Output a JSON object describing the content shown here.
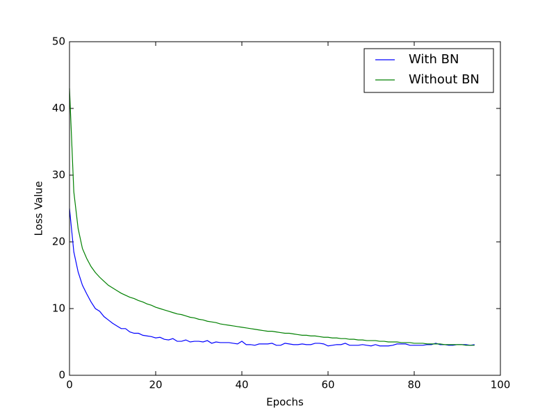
{
  "chart_data": {
    "type": "line",
    "xlabel": "Epochs",
    "ylabel": "Loss Value",
    "x": [
      0,
      1,
      2,
      3,
      4,
      5,
      6,
      7,
      8,
      9,
      10,
      11,
      12,
      13,
      14,
      15,
      16,
      17,
      18,
      19,
      20,
      21,
      22,
      23,
      24,
      25,
      26,
      27,
      28,
      29,
      30,
      31,
      32,
      33,
      34,
      35,
      36,
      37,
      38,
      39,
      40,
      41,
      42,
      43,
      44,
      45,
      46,
      47,
      48,
      49,
      50,
      51,
      52,
      53,
      54,
      55,
      56,
      57,
      58,
      59,
      60,
      61,
      62,
      63,
      64,
      65,
      66,
      67,
      68,
      69,
      70,
      71,
      72,
      73,
      74,
      75,
      76,
      77,
      78,
      79,
      80,
      81,
      82,
      83,
      84,
      85,
      86,
      87,
      88,
      89,
      90,
      91,
      92,
      93,
      94
    ],
    "series": [
      {
        "name": "With BN",
        "color": "#0000ff",
        "values": [
          25,
          18.5,
          15.5,
          13.5,
          12.2,
          11,
          10,
          9.6,
          8.8,
          8.3,
          7.8,
          7.4,
          7,
          7,
          6.5,
          6.3,
          6.3,
          6,
          5.9,
          5.8,
          5.6,
          5.7,
          5.4,
          5.3,
          5.5,
          5.1,
          5.1,
          5.3,
          5,
          5.1,
          5.1,
          5,
          5.2,
          4.8,
          5,
          4.9,
          4.9,
          4.9,
          4.8,
          4.7,
          5.1,
          4.6,
          4.6,
          4.5,
          4.7,
          4.7,
          4.7,
          4.8,
          4.5,
          4.5,
          4.8,
          4.7,
          4.6,
          4.6,
          4.7,
          4.6,
          4.6,
          4.8,
          4.8,
          4.7,
          4.4,
          4.5,
          4.6,
          4.6,
          4.8,
          4.5,
          4.5,
          4.5,
          4.6,
          4.5,
          4.4,
          4.6,
          4.4,
          4.4,
          4.4,
          4.5,
          4.7,
          4.7,
          4.7,
          4.5,
          4.5,
          4.5,
          4.5,
          4.6,
          4.6,
          4.8,
          4.6,
          4.6,
          4.5,
          4.5,
          4.6,
          4.6,
          4.6,
          4.5,
          4.6
        ]
      },
      {
        "name": "Without BN",
        "color": "#008000",
        "values": [
          43,
          27.5,
          22,
          19,
          17.5,
          16.3,
          15.4,
          14.7,
          14.1,
          13.5,
          13.1,
          12.7,
          12.3,
          12,
          11.7,
          11.5,
          11.2,
          11,
          10.7,
          10.5,
          10.2,
          10,
          9.8,
          9.6,
          9.4,
          9.2,
          9.1,
          8.9,
          8.7,
          8.6,
          8.4,
          8.3,
          8.1,
          8,
          7.9,
          7.7,
          7.6,
          7.5,
          7.4,
          7.3,
          7.2,
          7.1,
          7,
          6.9,
          6.8,
          6.7,
          6.6,
          6.6,
          6.5,
          6.4,
          6.3,
          6.3,
          6.2,
          6.1,
          6,
          6,
          5.9,
          5.9,
          5.8,
          5.7,
          5.7,
          5.6,
          5.6,
          5.5,
          5.5,
          5.4,
          5.4,
          5.3,
          5.3,
          5.2,
          5.2,
          5.2,
          5.1,
          5.1,
          5,
          5,
          5,
          4.9,
          4.9,
          4.9,
          4.8,
          4.8,
          4.8,
          4.7,
          4.7,
          4.7,
          4.7,
          4.6,
          4.6,
          4.6,
          4.6,
          4.6,
          4.5,
          4.5,
          4.5
        ]
      }
    ],
    "xlim": [
      0,
      100
    ],
    "xticks": [
      0,
      20,
      40,
      60,
      80,
      100
    ],
    "ylim": [
      0,
      50
    ],
    "yticks": [
      0,
      10,
      20,
      30,
      40,
      50
    ],
    "legend": "upper right"
  }
}
